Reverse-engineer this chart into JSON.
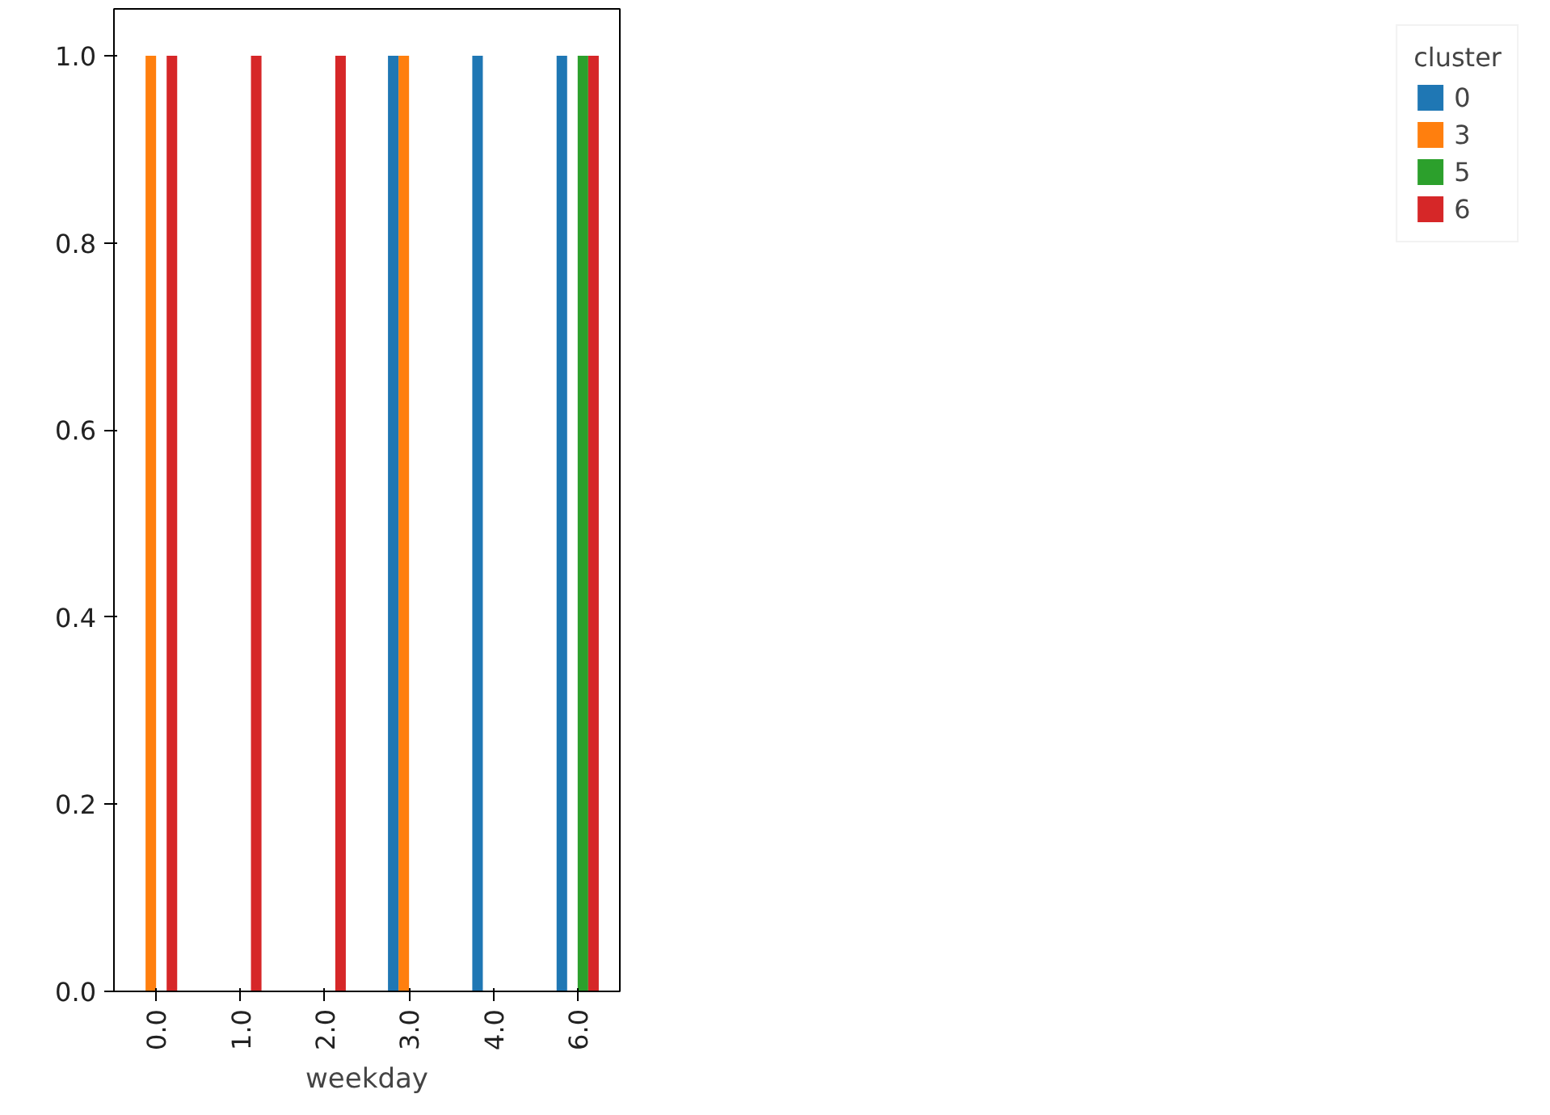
{
  "chart_data": {
    "type": "bar",
    "xlabel": "weekday",
    "legend_title": "cluster",
    "legend": "right",
    "grid": false,
    "categories": [
      "0.0",
      "1.0",
      "2.0",
      "3.0",
      "4.0",
      "6.0"
    ],
    "series": [
      {
        "name": "0",
        "color": "#1f77b4",
        "values": [
          null,
          null,
          null,
          1,
          1,
          1
        ]
      },
      {
        "name": "3",
        "color": "#ff7f0e",
        "values": [
          1,
          null,
          null,
          1,
          null,
          null
        ]
      },
      {
        "name": "5",
        "color": "#2ca02c",
        "values": [
          null,
          null,
          null,
          null,
          null,
          1
        ]
      },
      {
        "name": "6",
        "color": "#d62728",
        "values": [
          1,
          1,
          1,
          null,
          null,
          1
        ]
      }
    ],
    "ylim": [
      0,
      1.05
    ],
    "yticks": [
      {
        "value": 0,
        "label": "0.0"
      },
      {
        "value": 0.2,
        "label": "0.2"
      },
      {
        "value": 0.4,
        "label": "0.4"
      },
      {
        "value": 0.6,
        "label": "0.6"
      },
      {
        "value": 0.8,
        "label": "0.8"
      },
      {
        "value": 1.0,
        "label": "1.0"
      }
    ]
  }
}
